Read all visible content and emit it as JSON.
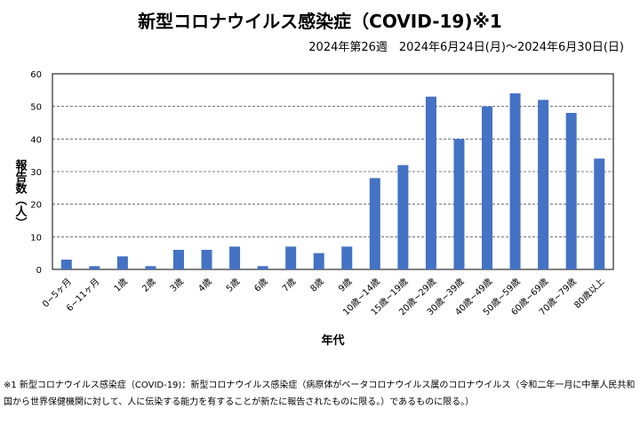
{
  "chart_data": {
    "type": "bar",
    "title": "新型コロナウイルス感染症（COVID-19)※1",
    "subtitle": "2024年第26週　2024年6月24日(月)～2024年6月30日(日)",
    "xlabel": "年代",
    "ylabel": "報告数（人）",
    "ylim": [
      0,
      60
    ],
    "yticks": [
      0,
      10,
      20,
      30,
      40,
      50,
      60
    ],
    "grid": true,
    "color": "#4472C4",
    "categories": [
      "0~5ヶ月",
      "6~11ヶ月",
      "1歳",
      "2歳",
      "3歳",
      "4歳",
      "5歳",
      "6歳",
      "7歳",
      "8歳",
      "9歳",
      "10歳~14歳",
      "15歳~19歳",
      "20歳~29歳",
      "30歳~39歳",
      "40歳~49歳",
      "50歳~59歳",
      "60歳~69歳",
      "70歳~79歳",
      "80歳以上"
    ],
    "values": [
      3,
      1,
      4,
      1,
      6,
      6,
      7,
      1,
      7,
      5,
      7,
      28,
      32,
      53,
      40,
      50,
      54,
      52,
      48,
      34
    ]
  },
  "note": "※1 新型コロナウイルス感染症（COVID-19)：新型コロナウイルス感染症（病原体がベータコロナウイルス属のコロナウイルス（令和二年一月に中華人民共和国から世界保健機関に対して、人に伝染する能力を有することが新たに報告されたものに限る。）であるものに限る。）"
}
